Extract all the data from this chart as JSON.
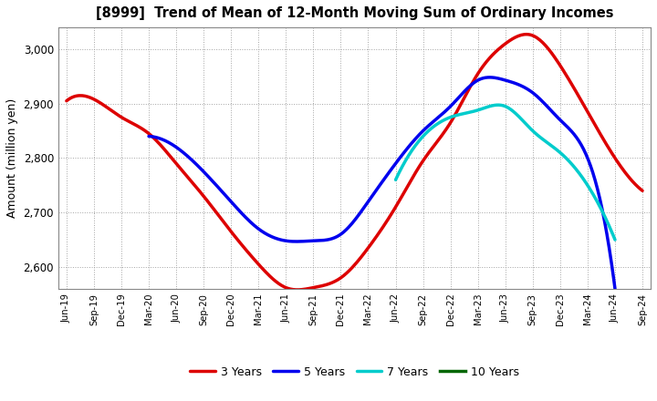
{
  "title": "[8999]  Trend of Mean of 12-Month Moving Sum of Ordinary Incomes",
  "ylabel": "Amount (million yen)",
  "background_color": "#ffffff",
  "grid_color": "#999999",
  "ylim": [
    2560,
    3040
  ],
  "yticks": [
    2600,
    2700,
    2800,
    2900,
    3000
  ],
  "legend_labels": [
    "3 Years",
    "5 Years",
    "7 Years",
    "10 Years"
  ],
  "legend_colors": [
    "#dd0000",
    "#0000ee",
    "#00cccc",
    "#006600"
  ],
  "x_labels": [
    "Jun-19",
    "Sep-19",
    "Dec-19",
    "Mar-20",
    "Jun-20",
    "Sep-20",
    "Dec-20",
    "Mar-21",
    "Jun-21",
    "Sep-21",
    "Dec-21",
    "Mar-22",
    "Jun-22",
    "Sep-22",
    "Dec-22",
    "Mar-23",
    "Jun-23",
    "Sep-23",
    "Dec-23",
    "Mar-24",
    "Jun-24",
    "Sep-24"
  ],
  "series_3yr": [
    2905,
    2908,
    2875,
    2845,
    2790,
    2730,
    2665,
    2605,
    2562,
    2562,
    2580,
    2635,
    2710,
    2795,
    2865,
    2955,
    3010,
    3025,
    2970,
    2885,
    2800,
    2740
  ],
  "series_5yr": [
    null,
    null,
    null,
    2840,
    2820,
    2775,
    2720,
    2670,
    2648,
    2648,
    2660,
    2720,
    2790,
    2850,
    2895,
    2943,
    2943,
    2920,
    2870,
    2800,
    2560,
    null
  ],
  "series_7yr": [
    null,
    null,
    null,
    null,
    null,
    null,
    null,
    null,
    null,
    null,
    null,
    null,
    2760,
    2840,
    2875,
    2888,
    2895,
    2850,
    2810,
    2750,
    2650,
    null
  ],
  "series_10yr": [
    null,
    null,
    null,
    null,
    null,
    null,
    null,
    null,
    null,
    null,
    null,
    null,
    null,
    null,
    null,
    null,
    null,
    null,
    null,
    null,
    null,
    null
  ]
}
